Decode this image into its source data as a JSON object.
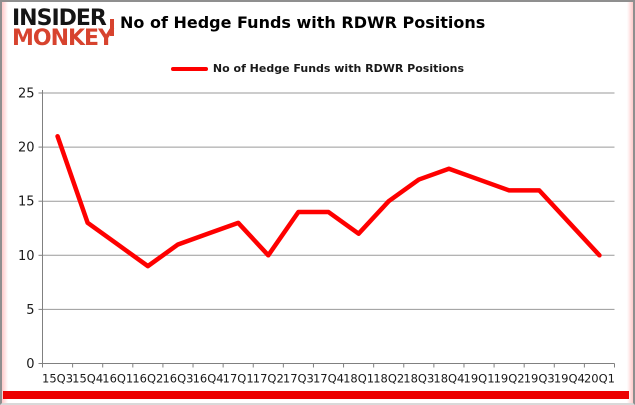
{
  "logo": {
    "line1": "INSIDER",
    "line2": "MONKEY"
  },
  "header": {
    "title": "No of Hedge Funds with RDWR Positions"
  },
  "legend": {
    "label": "No of Hedge Funds with RDWR Positions"
  },
  "colors": {
    "line": "#fe0000",
    "logo_black": "#151515",
    "logo_red": "#d7432e",
    "gridline": "#9a9a9a",
    "axis": "#808080",
    "tick_label": "#1a1a1a",
    "bottom_bar": "#ec0000",
    "frame_border": "#8f8f8f",
    "edge_glow": "#ffc9c9"
  },
  "chart_data": {
    "type": "line",
    "title": "No of Hedge Funds with RDWR Positions",
    "categories": [
      "15Q3",
      "15Q4",
      "16Q1",
      "16Q2",
      "16Q3",
      "16Q4",
      "17Q1",
      "17Q2",
      "17Q3",
      "17Q4",
      "18Q1",
      "18Q2",
      "18Q3",
      "18Q4",
      "19Q1",
      "19Q2",
      "19Q3",
      "19Q4",
      "20Q1"
    ],
    "series": [
      {
        "name": "No of Hedge Funds with RDWR Positions",
        "values": [
          21,
          13,
          11,
          9,
          11,
          12,
          13,
          10,
          14,
          14,
          12,
          15,
          17,
          18,
          17,
          16,
          16,
          13,
          10
        ]
      }
    ],
    "xlabel": "",
    "ylabel": "",
    "ylim": [
      0,
      25
    ],
    "yticks": [
      0,
      5,
      10,
      15,
      20,
      25
    ],
    "grid": true,
    "legend_position": "top-center"
  }
}
